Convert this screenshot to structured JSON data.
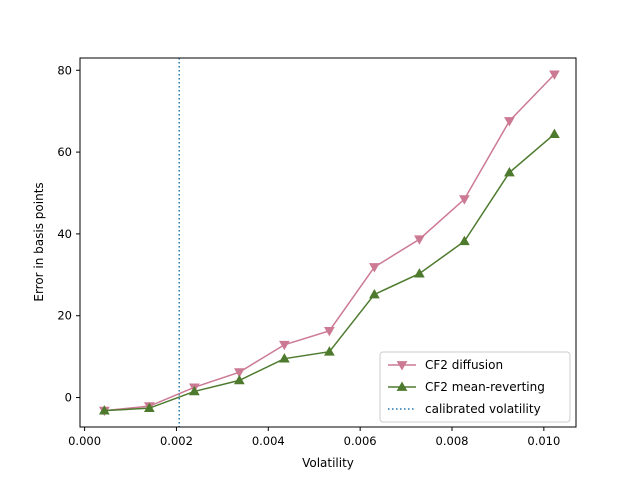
{
  "chart_data": {
    "type": "line",
    "title": "",
    "xlabel": "Volatility",
    "ylabel": "Error in basis points",
    "xlim": [
      -0.0001,
      0.0107
    ],
    "ylim": [
      -7.2,
      83.0
    ],
    "x_ticks": [
      0.0,
      0.002,
      0.004,
      0.006,
      0.008,
      0.01
    ],
    "x_tick_labels": [
      "0.000",
      "0.002",
      "0.004",
      "0.006",
      "0.008",
      "0.010"
    ],
    "y_ticks": [
      0,
      20,
      40,
      60,
      80
    ],
    "y_tick_labels": [
      "0",
      "20",
      "40",
      "60",
      "80"
    ],
    "grid": false,
    "legend_position": "lower right",
    "x": [
      0.00043,
      0.00141,
      0.00239,
      0.00337,
      0.00435,
      0.00533,
      0.00631,
      0.00729,
      0.00827,
      0.00925,
      0.01023
    ],
    "series": [
      {
        "name": "CF2 diffusion",
        "color": "#cc7a94",
        "marker": "triangle-down",
        "values": [
          -3.2,
          -2.1,
          2.5,
          6.2,
          12.9,
          16.3,
          31.9,
          38.7,
          48.5,
          67.6,
          79.0
        ]
      },
      {
        "name": "CF2 mean-reverting",
        "color": "#4e7a2e",
        "marker": "triangle-up",
        "values": [
          -3.2,
          -2.6,
          1.5,
          4.2,
          9.5,
          11.2,
          25.2,
          30.3,
          38.2,
          55.0,
          64.4
        ]
      }
    ],
    "vline": {
      "name": "calibrated volatility",
      "x": 0.00206,
      "color": "#1f77b4",
      "style": "dotted"
    }
  }
}
